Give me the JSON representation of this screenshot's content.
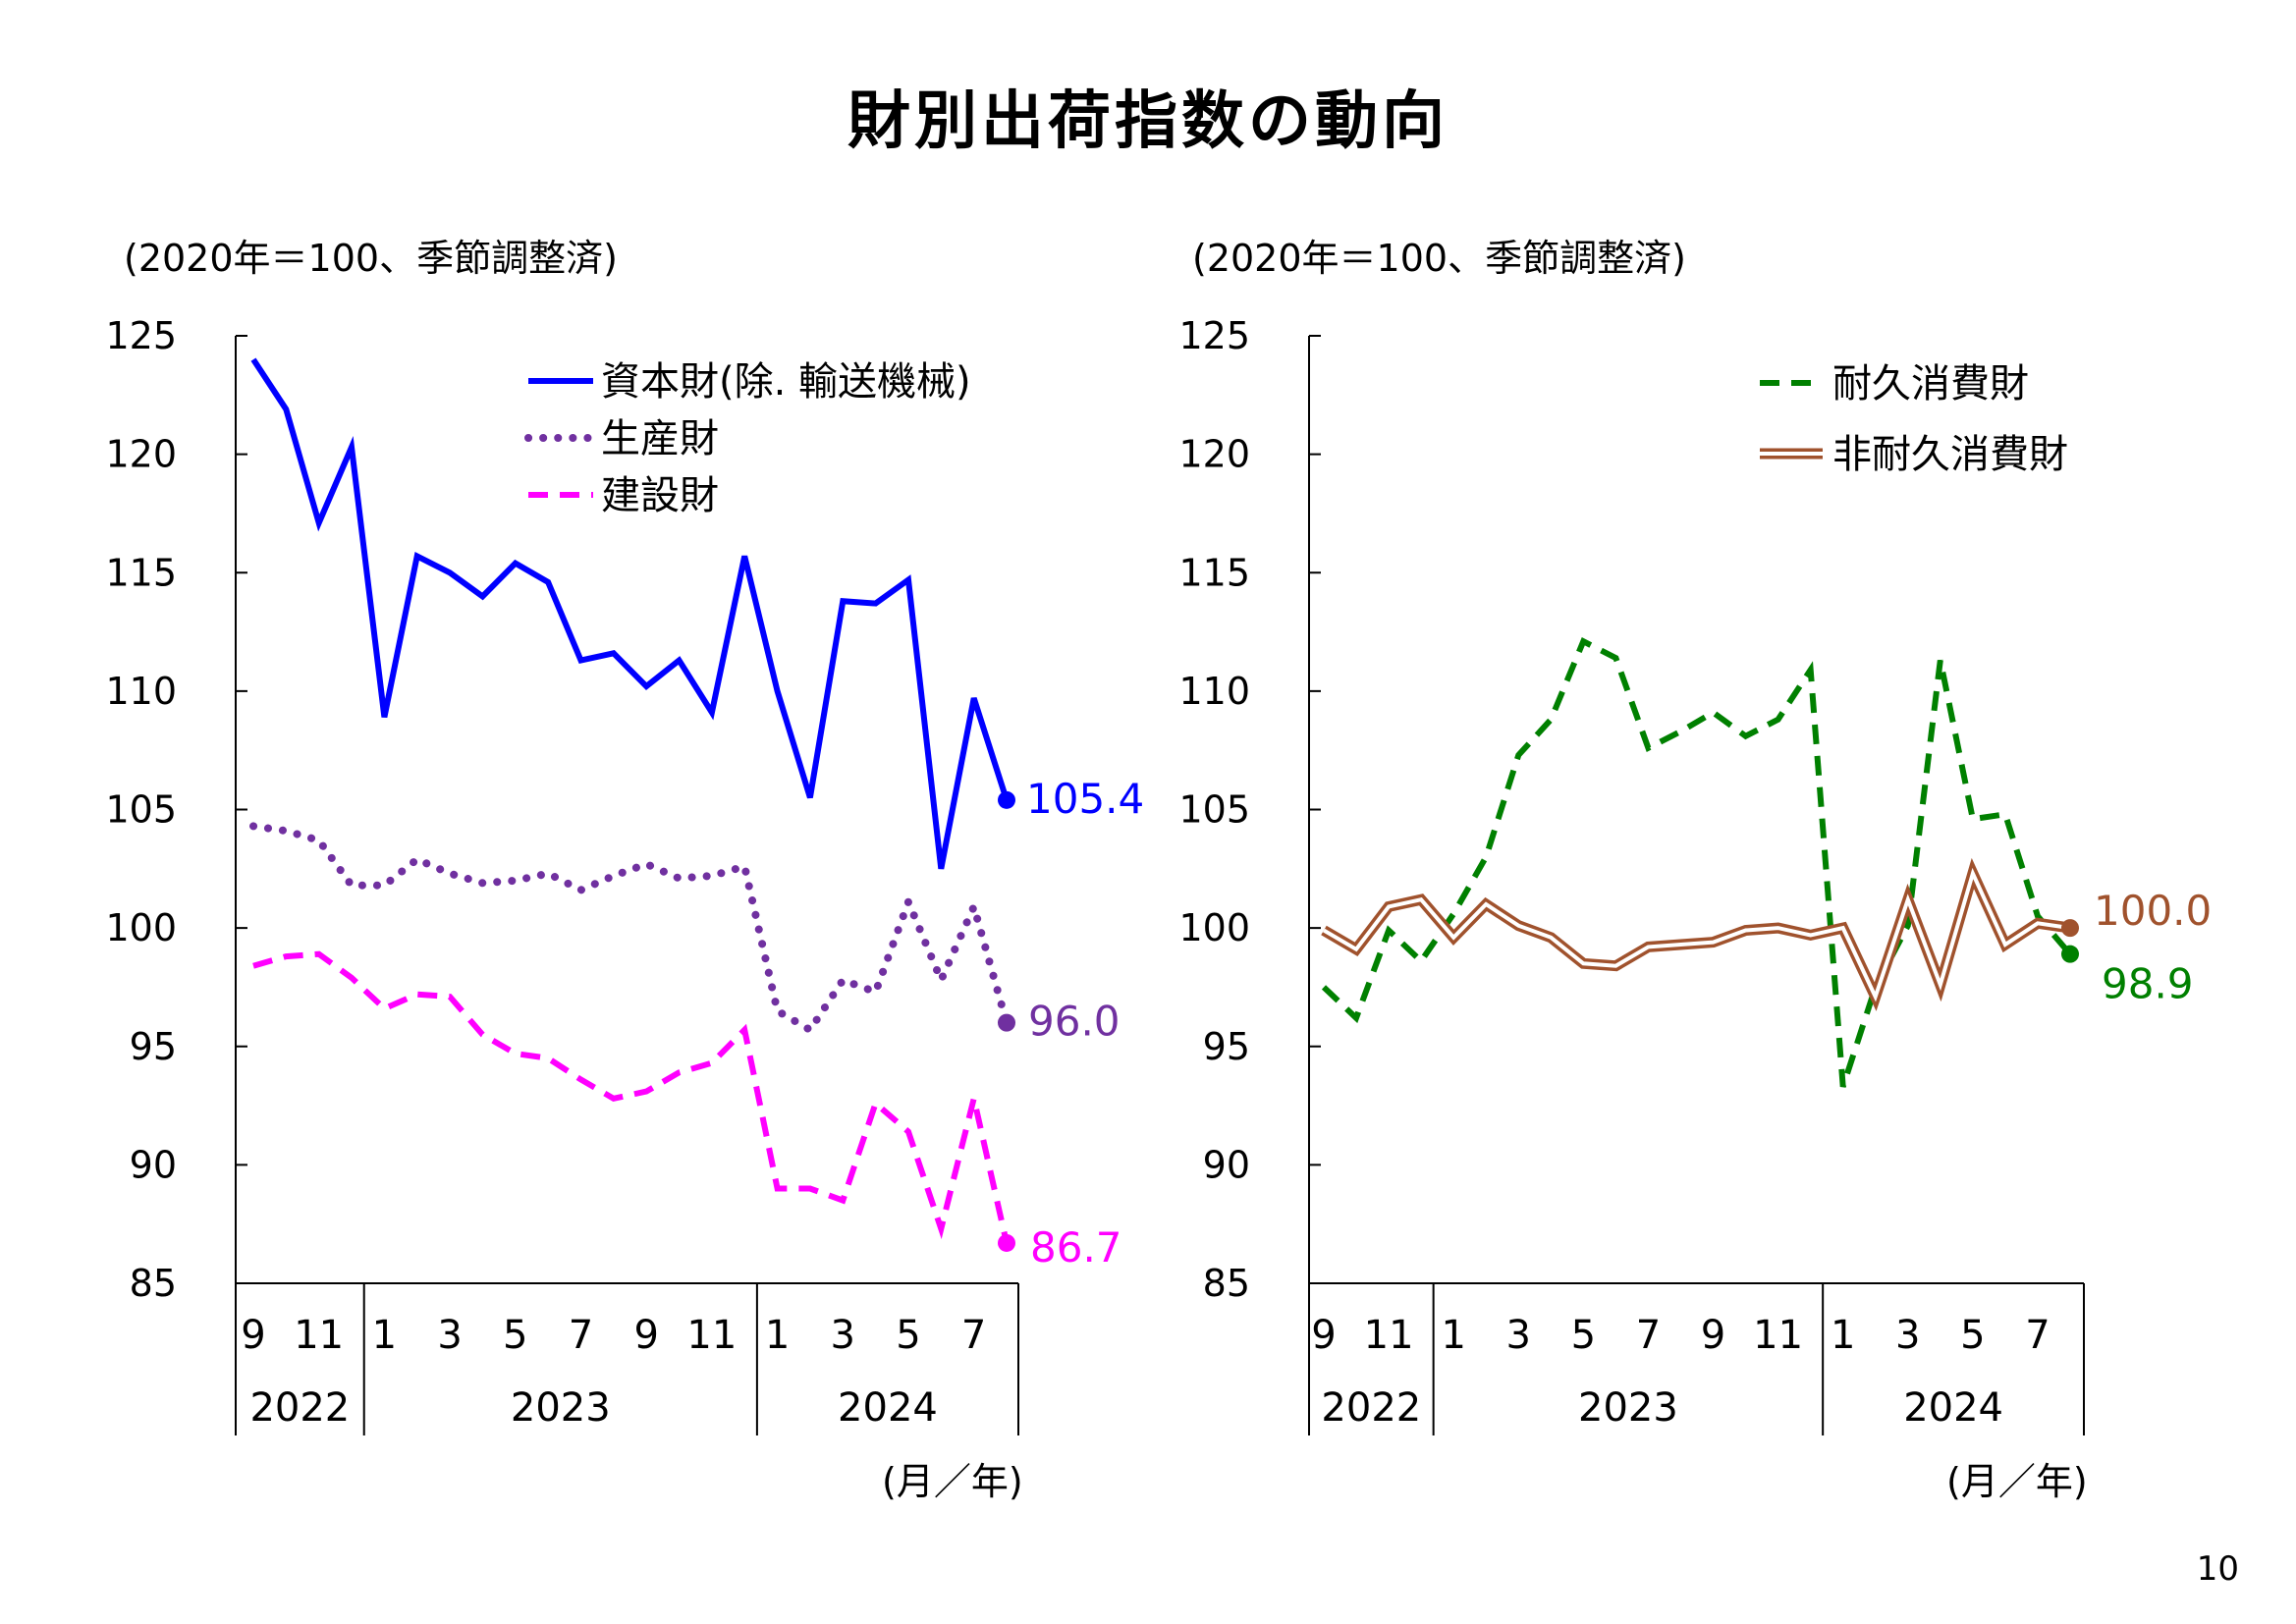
{
  "title": "財別出荷指数の動向",
  "page_number": "10",
  "chart_data": [
    {
      "type": "line",
      "unit_label": "(2020年＝100、季節調整済)",
      "x_unit_label": "(月／年)",
      "ylim": [
        85,
        125
      ],
      "y_ticks": [
        "125",
        "120",
        "115",
        "110",
        "105",
        "100",
        "95",
        "90",
        "85"
      ],
      "x_month_labels": [
        "9",
        "11",
        "1",
        "3",
        "5",
        "7",
        "9",
        "11",
        "1",
        "3",
        "5",
        "7"
      ],
      "x_month_index": [
        0,
        2,
        4,
        6,
        8,
        10,
        12,
        14,
        16,
        18,
        20,
        22
      ],
      "x_year_labels": [
        "2022",
        "2023",
        "2024"
      ],
      "x_year_groups": [
        [
          0,
          3
        ],
        [
          4,
          15
        ],
        [
          16,
          23
        ]
      ],
      "x": [
        "2022-09",
        "2022-10",
        "2022-11",
        "2022-12",
        "2023-01",
        "2023-02",
        "2023-03",
        "2023-04",
        "2023-05",
        "2023-06",
        "2023-07",
        "2023-08",
        "2023-09",
        "2023-10",
        "2023-11",
        "2023-12",
        "2024-01",
        "2024-02",
        "2024-03",
        "2024-04",
        "2024-05",
        "2024-06",
        "2024-07",
        "2024-08"
      ],
      "legend_position": "top-right",
      "series": [
        {
          "name": "資本財(除. 輸送機械)",
          "style": "solid",
          "color": "#0000ff",
          "values": [
            124.0,
            121.9,
            117.1,
            120.3,
            108.9,
            115.7,
            115.0,
            114.0,
            115.4,
            114.6,
            111.3,
            111.6,
            110.2,
            111.3,
            109.1,
            115.7,
            110.0,
            105.5,
            113.8,
            113.7,
            114.7,
            102.5,
            109.7,
            105.4
          ],
          "end_label": "105.4"
        },
        {
          "name": "生産財",
          "style": "dotted",
          "color": "#7030a0",
          "values": [
            104.3,
            104.1,
            103.7,
            101.8,
            101.8,
            102.9,
            102.3,
            101.9,
            102.0,
            102.3,
            101.6,
            102.2,
            102.7,
            102.1,
            102.2,
            102.6,
            96.5,
            95.7,
            97.8,
            97.3,
            101.1,
            97.8,
            100.9,
            96.0
          ],
          "end_label": "96.0"
        },
        {
          "name": "建設財",
          "style": "dashed",
          "color": "#ff00ff",
          "values": [
            98.4,
            98.8,
            98.9,
            97.9,
            96.6,
            97.2,
            97.1,
            95.5,
            94.7,
            94.5,
            93.6,
            92.8,
            93.1,
            93.9,
            94.3,
            95.7,
            89.0,
            89.0,
            88.5,
            92.6,
            91.4,
            87.3,
            92.8,
            86.7
          ],
          "end_label": "86.7"
        }
      ]
    },
    {
      "type": "line",
      "unit_label": "(2020年＝100、季節調整済)",
      "x_unit_label": "(月／年)",
      "ylim": [
        85,
        125
      ],
      "y_ticks": [
        "125",
        "120",
        "115",
        "110",
        "105",
        "100",
        "95",
        "90",
        "85"
      ],
      "x_month_labels": [
        "9",
        "11",
        "1",
        "3",
        "5",
        "7",
        "9",
        "11",
        "1",
        "3",
        "5",
        "7"
      ],
      "x_month_index": [
        0,
        2,
        4,
        6,
        8,
        10,
        12,
        14,
        16,
        18,
        20,
        22
      ],
      "x_year_labels": [
        "2022",
        "2023",
        "2024"
      ],
      "x_year_groups": [
        [
          0,
          3
        ],
        [
          4,
          15
        ],
        [
          16,
          23
        ]
      ],
      "x": [
        "2022-09",
        "2022-10",
        "2022-11",
        "2022-12",
        "2023-01",
        "2023-02",
        "2023-03",
        "2023-04",
        "2023-05",
        "2023-06",
        "2023-07",
        "2023-08",
        "2023-09",
        "2023-10",
        "2023-11",
        "2023-12",
        "2024-01",
        "2024-02",
        "2024-03",
        "2024-04",
        "2024-05",
        "2024-06",
        "2024-07",
        "2024-08"
      ],
      "legend_position": "top-right",
      "series": [
        {
          "name": "耐久消費財",
          "style": "dashed",
          "color": "#008000",
          "values": [
            97.5,
            96.2,
            99.9,
            98.6,
            100.6,
            103.0,
            107.3,
            108.8,
            112.1,
            111.4,
            107.6,
            108.3,
            109.1,
            108.1,
            108.8,
            110.9,
            93.3,
            97.5,
            100.1,
            111.3,
            104.6,
            104.8,
            100.5,
            98.9
          ],
          "end_label": "98.9"
        },
        {
          "name": "非耐久消費財",
          "style": "double",
          "color": "#a0522d",
          "values": [
            99.9,
            99.1,
            100.9,
            101.2,
            99.6,
            101.0,
            100.1,
            99.6,
            98.5,
            98.4,
            99.2,
            99.3,
            99.4,
            99.9,
            100.0,
            99.7,
            100.0,
            97.1,
            101.2,
            97.6,
            102.3,
            99.3,
            100.2,
            100.0
          ],
          "end_label": "100.0"
        }
      ]
    }
  ]
}
